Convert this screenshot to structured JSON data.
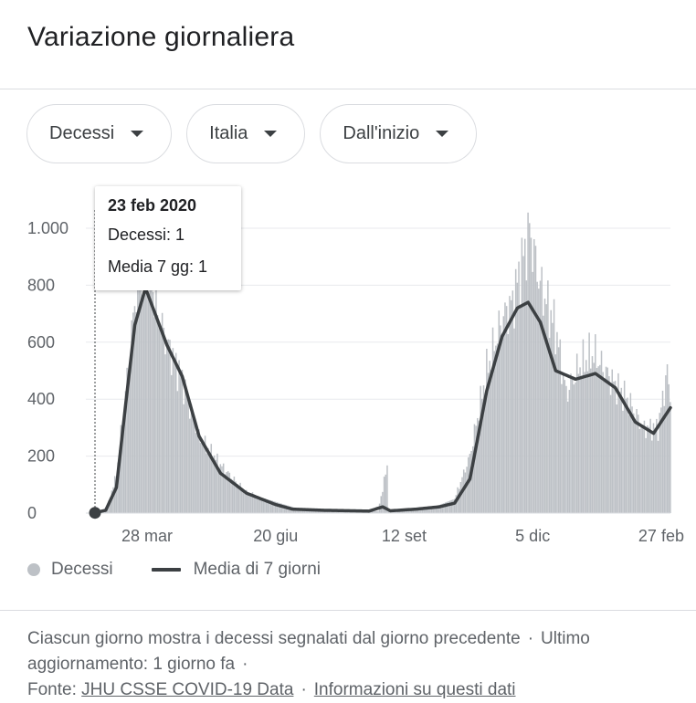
{
  "header": {
    "title": "Variazione giornaliera"
  },
  "filters": {
    "metric": "Decessi",
    "region": "Italia",
    "period": "Dall'inizio"
  },
  "tooltip": {
    "date": "23 feb 2020",
    "line1": "Decessi: 1",
    "line2": "Media 7 gg: 1"
  },
  "legend": {
    "bars": "Decessi",
    "line": "Media di 7 giorni"
  },
  "footer": {
    "text1": "Ciascun giorno mostra i decessi segnalati dal giorno precedente",
    "text2": "Ultimo aggiornamento: 1 giorno fa",
    "source_label": "Fonte:",
    "source_link": "JHU CSSE COVID-19 Data",
    "info_link": "Informazioni su questi dati",
    "dot": "·"
  },
  "colors": {
    "bars": "#bdc1c6",
    "line": "#3c4043",
    "grid": "#e8eaed",
    "axis": "#5f6368"
  },
  "chart_data": {
    "type": "bar",
    "title": "Variazione giornaliera",
    "x_start": "2020-02-23",
    "x_end": "2021-03-05",
    "ylim": [
      0,
      1000
    ],
    "yticks": [
      {
        "value": 0,
        "label": "0"
      },
      {
        "value": 200,
        "label": "200"
      },
      {
        "value": 400,
        "label": "400"
      },
      {
        "value": 600,
        "label": "600"
      },
      {
        "value": 800,
        "label": "800"
      },
      {
        "value": 1000,
        "label": "1.000"
      }
    ],
    "xticks": [
      {
        "date": "2020-03-28",
        "label": "28 mar"
      },
      {
        "date": "2020-06-20",
        "label": "20 giu"
      },
      {
        "date": "2020-09-12",
        "label": "12 set"
      },
      {
        "date": "2020-12-05",
        "label": "5 dic"
      },
      {
        "date": "2021-02-27",
        "label": "27 feb"
      }
    ],
    "grid": true,
    "legend_position": "bottom-left",
    "series": [
      {
        "name": "Decessi",
        "kind": "bar",
        "keypoints": [
          [
            "2020-02-23",
            1
          ],
          [
            "2020-03-01",
            10
          ],
          [
            "2020-03-08",
            130
          ],
          [
            "2020-03-14",
            420
          ],
          [
            "2020-03-21",
            790
          ],
          [
            "2020-03-27",
            919
          ],
          [
            "2020-04-04",
            700
          ],
          [
            "2020-04-10",
            600
          ],
          [
            "2020-04-20",
            470
          ],
          [
            "2020-05-01",
            270
          ],
          [
            "2020-05-15",
            170
          ],
          [
            "2020-06-01",
            70
          ],
          [
            "2020-06-20",
            40
          ],
          [
            "2020-07-05",
            15
          ],
          [
            "2020-08-01",
            8
          ],
          [
            "2020-08-26",
            7
          ],
          [
            "2020-09-01",
            165
          ],
          [
            "2020-09-02",
            8
          ],
          [
            "2020-09-15",
            10
          ],
          [
            "2020-10-01",
            20
          ],
          [
            "2020-10-15",
            50
          ],
          [
            "2020-10-25",
            200
          ],
          [
            "2020-11-05",
            500
          ],
          [
            "2020-11-15",
            680
          ],
          [
            "2020-11-22",
            740
          ],
          [
            "2020-12-03",
            993
          ],
          [
            "2020-12-10",
            800
          ],
          [
            "2020-12-20",
            650
          ],
          [
            "2020-12-27",
            420
          ],
          [
            "2021-01-05",
            520
          ],
          [
            "2021-01-14",
            560
          ],
          [
            "2021-01-25",
            470
          ],
          [
            "2021-02-05",
            400
          ],
          [
            "2021-02-15",
            300
          ],
          [
            "2021-02-25",
            300
          ],
          [
            "2021-03-03",
            500
          ],
          [
            "2021-03-04",
            440
          ],
          [
            "2021-03-05",
            430
          ]
        ]
      },
      {
        "name": "Media di 7 giorni",
        "kind": "line",
        "keypoints": [
          [
            "2020-02-23",
            1
          ],
          [
            "2020-03-01",
            10
          ],
          [
            "2020-03-08",
            90
          ],
          [
            "2020-03-14",
            380
          ],
          [
            "2020-03-20",
            660
          ],
          [
            "2020-03-27",
            790
          ],
          [
            "2020-04-03",
            690
          ],
          [
            "2020-04-10",
            590
          ],
          [
            "2020-04-20",
            480
          ],
          [
            "2020-05-01",
            270
          ],
          [
            "2020-05-15",
            140
          ],
          [
            "2020-06-01",
            70
          ],
          [
            "2020-06-20",
            30
          ],
          [
            "2020-07-01",
            14
          ],
          [
            "2020-07-20",
            10
          ],
          [
            "2020-08-20",
            7
          ],
          [
            "2020-08-29",
            22
          ],
          [
            "2020-09-03",
            8
          ],
          [
            "2020-09-20",
            14
          ],
          [
            "2020-10-05",
            22
          ],
          [
            "2020-10-15",
            35
          ],
          [
            "2020-10-25",
            120
          ],
          [
            "2020-11-05",
            430
          ],
          [
            "2020-11-15",
            620
          ],
          [
            "2020-11-25",
            720
          ],
          [
            "2020-12-02",
            740
          ],
          [
            "2020-12-10",
            670
          ],
          [
            "2020-12-20",
            500
          ],
          [
            "2021-01-02",
            470
          ],
          [
            "2021-01-15",
            490
          ],
          [
            "2021-01-28",
            440
          ],
          [
            "2021-02-10",
            320
          ],
          [
            "2021-02-22",
            280
          ],
          [
            "2021-03-05",
            370
          ]
        ]
      }
    ],
    "highlight": {
      "date": "2020-02-23",
      "value": 1
    }
  }
}
